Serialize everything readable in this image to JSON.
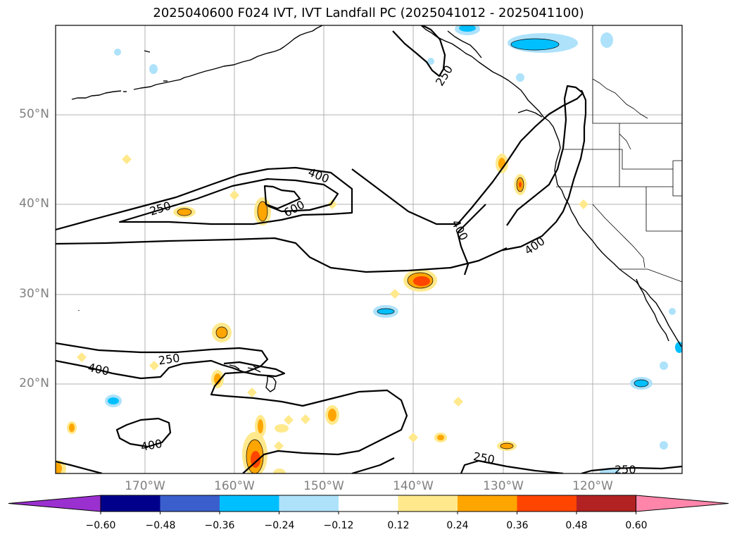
{
  "title": "2025040600 F024 IVT, IVT Landfall PC (2025041012 - 2025041100)",
  "map": {
    "lat_labels": [
      "50°N",
      "40°N",
      "30°N",
      "20°N"
    ],
    "lon_labels": [
      "170°W",
      "160°W",
      "150°W",
      "140°W",
      "130°W",
      "120°W"
    ],
    "contour_labels": [
      "250",
      "400",
      "600",
      "250",
      "400",
      "400",
      "250",
      "400",
      "400",
      "250",
      "250"
    ]
  },
  "colorbar": {
    "ticks": [
      "−0.60",
      "−0.48",
      "−0.36",
      "−0.24",
      "−0.12",
      "0.12",
      "0.24",
      "0.36",
      "0.48",
      "0.60"
    ],
    "colors": [
      "#9b30d0",
      "#00008b",
      "#3a5fcd",
      "#00bfff",
      "#aee2fb",
      "#ffffff",
      "#ffe98c",
      "#ffa500",
      "#ff4500",
      "#b22222",
      "#ff86aa"
    ]
  }
}
